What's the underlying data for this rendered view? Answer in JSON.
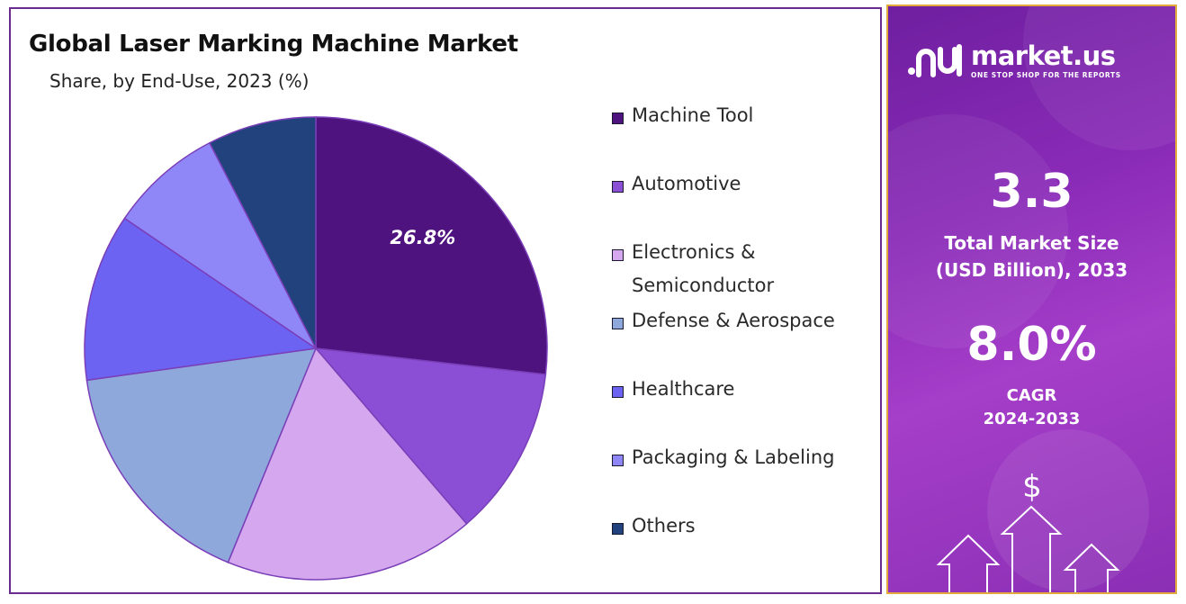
{
  "chart_data": {
    "type": "pie",
    "title": "Global Laser Marking Machine Market",
    "subtitle": "Share, by End-Use, 2023 (%)",
    "categories": [
      "Machine Tool",
      "Automotive",
      "Electronics & Semiconductor",
      "Defense & Aerospace",
      "Healthcare",
      "Packaging & Labeling",
      "Others"
    ],
    "legend_labels": [
      "Machine Tool",
      "Automotive",
      "Electronics &\nSemiconductor",
      "Defense & Aerospace",
      "Healthcare",
      "Packaging & Labeling",
      "Others"
    ],
    "values": [
      26.8,
      11.9,
      17.5,
      16.6,
      11.7,
      7.9,
      7.6
    ],
    "colors": [
      "#4f137f",
      "#8a4fd4",
      "#d5a7ee",
      "#8ea8dc",
      "#6d63f2",
      "#8f86f8",
      "#22427d"
    ],
    "data_labels": [
      "26.8%",
      "",
      "",
      "",
      "",
      "",
      ""
    ],
    "legend_position": "right"
  },
  "info_panel": {
    "brand_name": "market.us",
    "brand_tagline": "ONE STOP SHOP FOR THE REPORTS",
    "market_size_value": "3.3",
    "market_size_label_line1": "Total Market Size",
    "market_size_label_line2": "(USD Billion), 2033",
    "cagr_value": "8.0%",
    "cagr_label_line1": "CAGR",
    "cagr_label_line2": "2024-2033",
    "currency_symbol": "$",
    "logo_icon": "market-us-logo-icon",
    "decor_icon": "rising-arrows-dollar-icon"
  }
}
